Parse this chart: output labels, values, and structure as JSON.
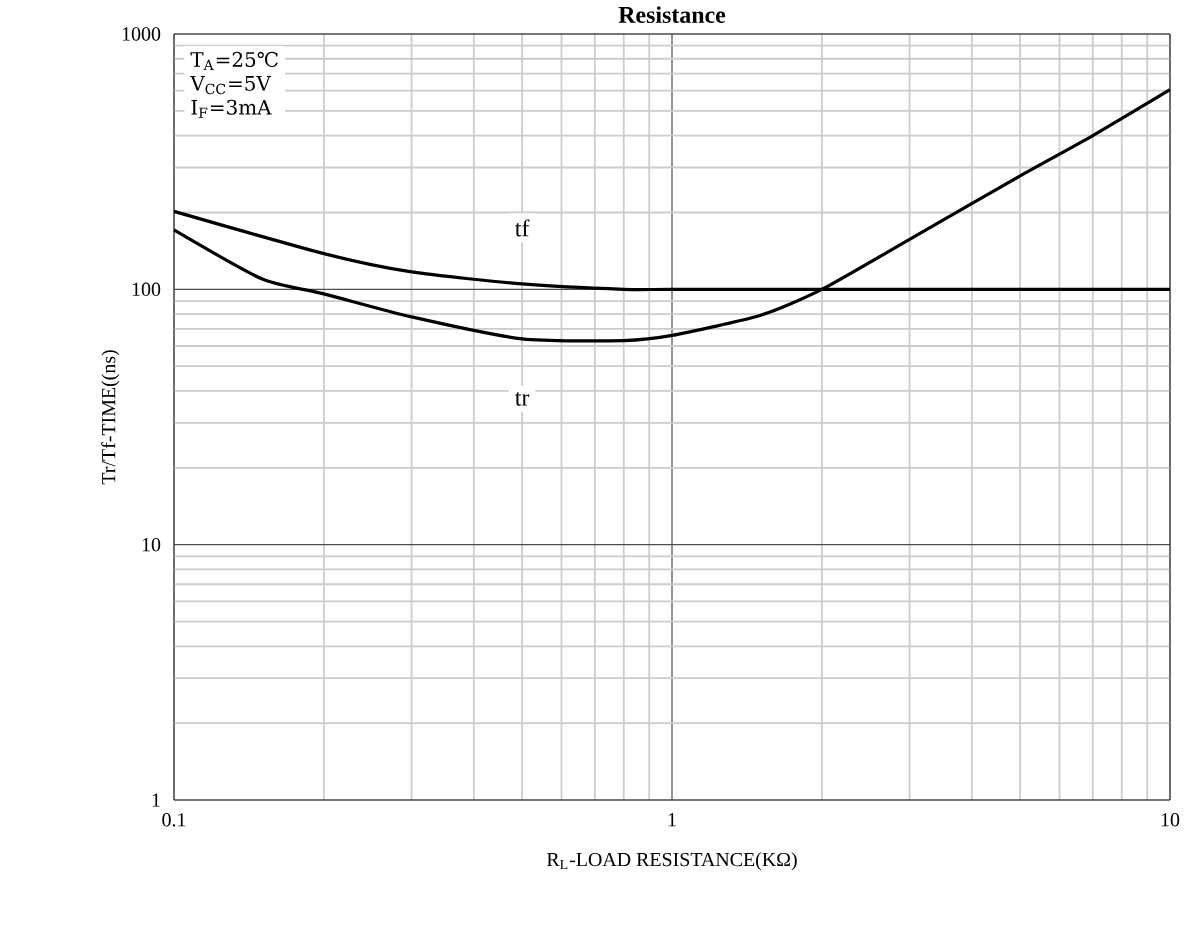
{
  "chart_data": {
    "type": "line",
    "title": "Resistance",
    "xlabel": "R$_{L}$-LOAD RESISTANCE(KΩ)",
    "ylabel": "Tr/Tf-TIME((ns)",
    "annotations": [
      "T$_{A}$=25℃",
      "V$_{CC}$=5V",
      "I$_{F}$=3mA"
    ],
    "log": "xy",
    "grid": true,
    "xlim": [
      0.1,
      10
    ],
    "ylim": [
      1,
      1000
    ],
    "xticks": [
      0.1,
      1,
      10
    ],
    "yticks": [
      1,
      10,
      100,
      1000
    ],
    "series": [
      {
        "name": "tf",
        "color": "#000000",
        "x": [
          0.1,
          0.2,
          0.3,
          0.5,
          0.8,
          1,
          2,
          5,
          10
        ],
        "values": [
          202,
          138,
          117,
          105,
          100,
          100,
          100,
          100,
          100
        ]
      },
      {
        "name": "tr",
        "color": "#000000",
        "x": [
          0.1,
          0.15,
          0.2,
          0.3,
          0.5,
          0.8,
          1,
          1.5,
          2,
          3,
          5,
          7,
          10
        ],
        "values": [
          171,
          110,
          96,
          78,
          64,
          63,
          66,
          79,
          100,
          157,
          278,
          400,
          605
        ]
      }
    ]
  }
}
